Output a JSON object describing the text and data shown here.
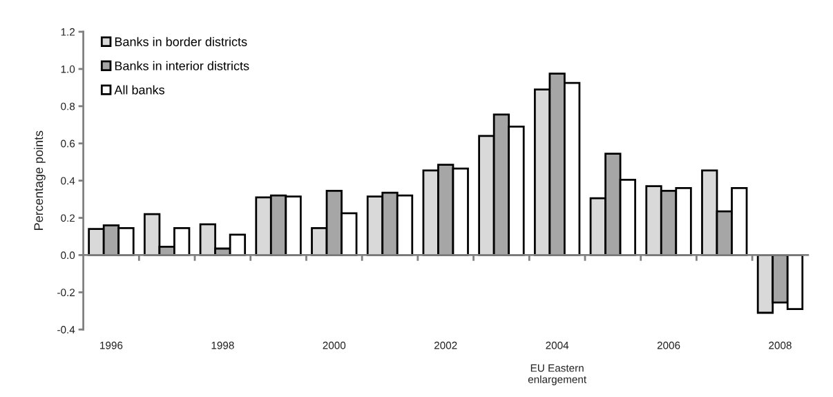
{
  "chart_data": {
    "type": "bar",
    "ylabel": "Percentage points",
    "categories": [
      "1996",
      null,
      "1998",
      null,
      "2000",
      null,
      "2002",
      null,
      "2004",
      null,
      "2006",
      null,
      "2008"
    ],
    "series": [
      {
        "name": "Banks in border districts",
        "color": "#d9d9d9",
        "values": [
          0.14,
          0.22,
          0.165,
          0.31,
          0.145,
          0.315,
          0.455,
          0.64,
          0.89,
          0.305,
          0.37,
          0.455,
          -0.31
        ]
      },
      {
        "name": "Banks in interior districts",
        "color": "#a6a6a6",
        "values": [
          0.16,
          0.045,
          0.035,
          0.32,
          0.345,
          0.335,
          0.485,
          0.755,
          0.975,
          0.545,
          0.345,
          0.235,
          -0.255
        ]
      },
      {
        "name": "All banks",
        "color": "#ffffff",
        "values": [
          0.145,
          0.145,
          0.11,
          0.315,
          0.225,
          0.32,
          0.465,
          0.69,
          0.925,
          0.405,
          0.36,
          0.36,
          -0.29
        ]
      }
    ],
    "ylim": [
      -0.4,
      1.2
    ],
    "yticks": [
      {
        "value": -0.4,
        "label": "-0.4"
      },
      {
        "value": -0.2,
        "label": "-0.2"
      },
      {
        "value": 0,
        "label": "0.0"
      },
      {
        "value": 0.2,
        "label": "0.2"
      },
      {
        "value": 0.4,
        "label": "0.4"
      },
      {
        "value": 0.6,
        "label": "0.6"
      },
      {
        "value": 0.8,
        "label": "0.8"
      },
      {
        "value": 1.0,
        "label": "1.0"
      },
      {
        "value": 1.2,
        "label": "1.2"
      }
    ],
    "annotations": [
      "EU Eastern\nenlargement"
    ],
    "legend": "top left"
  }
}
